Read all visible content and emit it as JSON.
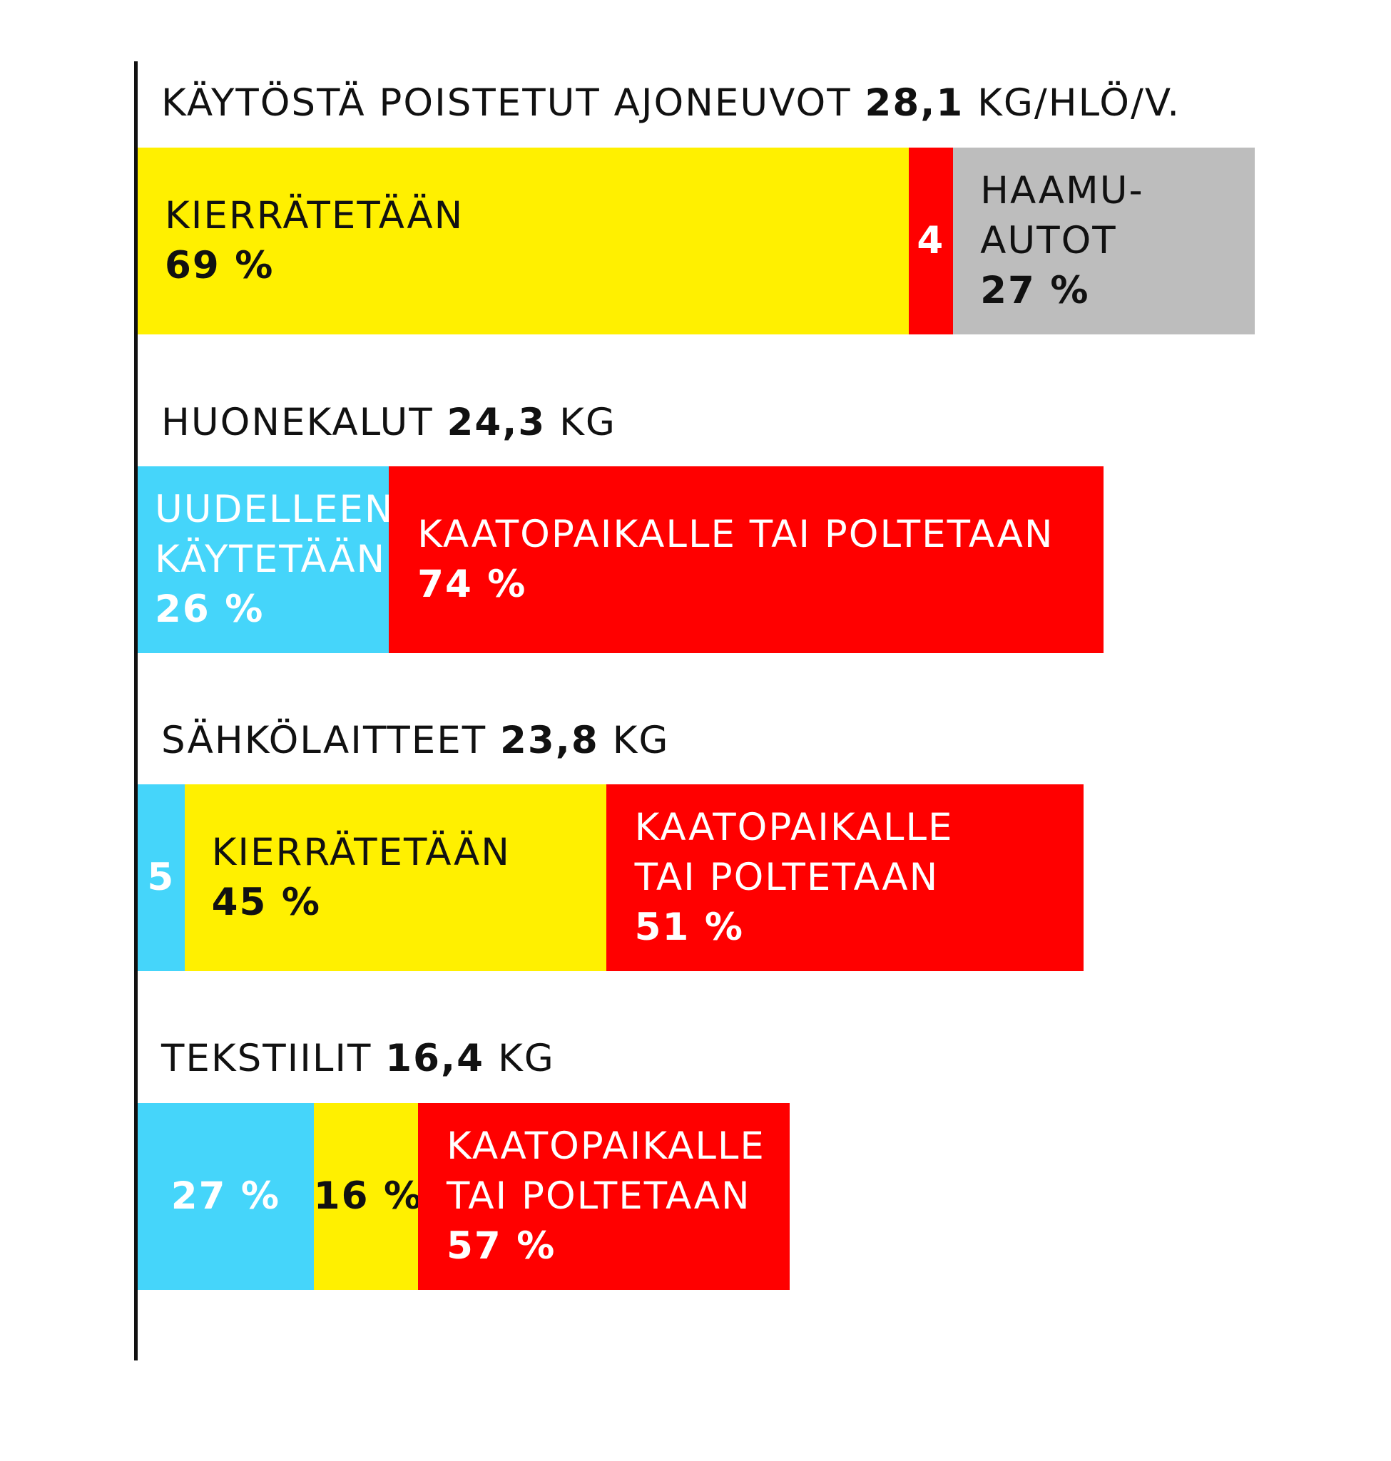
{
  "colors": {
    "kierratetaan": "#fff000",
    "uudelleenkaytetaan": "#45d5fa",
    "kaatopaikalle": "#ff0000",
    "haamuautot": "#bdbdbd",
    "axis": "#111111",
    "text_dark": "#111111",
    "text_light": "#ffffff"
  },
  "chart_data": {
    "type": "bar",
    "orientation": "horizontal",
    "stacked": true,
    "unit": "KG",
    "groups": [
      {
        "title_prefix": "KÄYTÖSTÄ POISTETUT AJONEUVOT",
        "value_text": "28,1",
        "unit_text": "KG/HLÖ/V.",
        "total_kg": 28.1,
        "segments": [
          {
            "category": "kierratetaan",
            "lines": [
              "KIERRÄTETÄÄN"
            ],
            "pct_text": "69 %",
            "value": 69
          },
          {
            "category": "kaatopaikalle",
            "lines": [],
            "pct_text": "4",
            "value": 4
          },
          {
            "category": "haamuautot",
            "lines": [
              "HAAMU-",
              "AUTOT"
            ],
            "pct_text": "27 %",
            "value": 27
          }
        ]
      },
      {
        "title_prefix": "HUONEKALUT",
        "value_text": "24,3",
        "unit_text": "KG",
        "total_kg": 24.3,
        "segments": [
          {
            "category": "uudelleenkaytetaan",
            "lines": [
              "UUDELLEEN-",
              "KÄYTETÄÄN"
            ],
            "pct_text": "26 %",
            "value": 26
          },
          {
            "category": "kaatopaikalle",
            "lines": [
              "KAATOPAIKALLE TAI POLTETAAN"
            ],
            "pct_text": "74 %",
            "value": 74
          }
        ]
      },
      {
        "title_prefix": "SÄHKÖLAITTEET",
        "value_text": "23,8",
        "unit_text": "KG",
        "total_kg": 23.8,
        "segments": [
          {
            "category": "uudelleenkaytetaan",
            "lines": [],
            "pct_text": "5",
            "value": 5
          },
          {
            "category": "kierratetaan",
            "lines": [
              "KIERRÄTETÄÄN"
            ],
            "pct_text": "45 %",
            "value": 45
          },
          {
            "category": "kaatopaikalle",
            "lines": [
              "KAATOPAIKALLE",
              "TAI POLTETAAN"
            ],
            "pct_text": "51 %",
            "value": 51
          }
        ]
      },
      {
        "title_prefix": "TEKSTIILIT",
        "value_text": "16,4",
        "unit_text": "KG",
        "total_kg": 16.4,
        "segments": [
          {
            "category": "uudelleenkaytetaan",
            "lines": [],
            "pct_text": "27 %",
            "value": 27
          },
          {
            "category": "kierratetaan",
            "lines": [],
            "pct_text": "16 %",
            "value": 16
          },
          {
            "category": "kaatopaikalle",
            "lines": [
              "KAATOPAIKALLE",
              "TAI POLTETAAN"
            ],
            "pct_text": "57 %",
            "value": 57
          }
        ]
      }
    ]
  }
}
